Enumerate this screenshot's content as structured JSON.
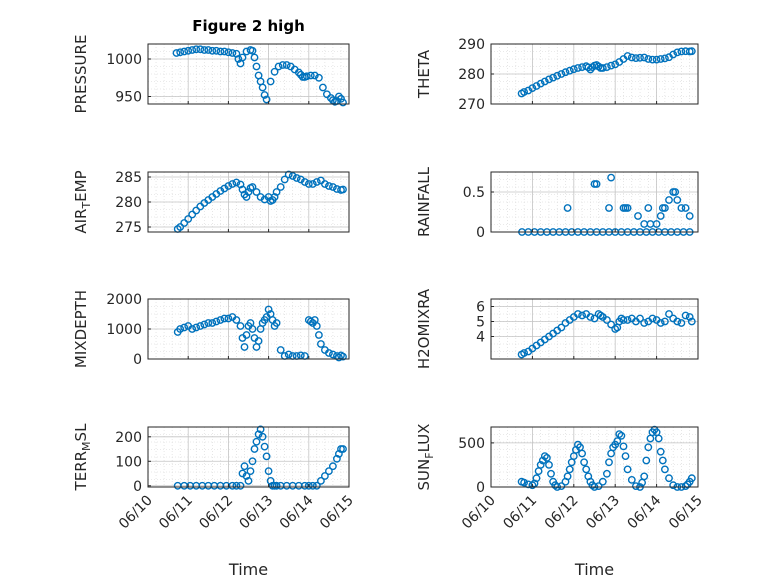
{
  "title": "Figure 2 high",
  "x_ticks": [
    "06/10",
    "06/11",
    "06/12",
    "06/13",
    "06/14",
    "06/15"
  ],
  "x_label": "Time",
  "marker_color": "#0072BD",
  "chart_data": [
    {
      "type": "scatter",
      "ylabel": "PRESSURE",
      "title": "Figure 2 high",
      "xlim": [
        0,
        5
      ],
      "ylim": [
        940,
        1020
      ],
      "yticks": [
        950,
        1000
      ],
      "x": [
        0.71,
        0.8,
        0.9,
        1.0,
        1.1,
        1.2,
        1.3,
        1.4,
        1.5,
        1.6,
        1.7,
        1.8,
        1.9,
        2.0,
        2.1,
        2.2,
        2.25,
        2.3,
        2.35,
        2.45,
        2.55,
        2.6,
        2.65,
        2.7,
        2.75,
        2.8,
        2.85,
        2.9,
        2.95,
        3.05,
        3.15,
        3.25,
        3.35,
        3.45,
        3.55,
        3.65,
        3.75,
        3.8,
        3.85,
        3.9,
        3.95,
        4.05,
        4.15,
        4.25,
        4.35,
        4.45,
        4.55,
        4.6,
        4.65,
        4.7,
        4.75,
        4.8,
        4.85
      ],
      "y": [
        1008,
        1009,
        1010,
        1011,
        1012,
        1013,
        1013,
        1012,
        1012,
        1011,
        1011,
        1010,
        1010,
        1009,
        1008,
        1007,
        1000,
        994,
        1002,
        1010,
        1012,
        1011,
        1002,
        990,
        978,
        970,
        962,
        952,
        946,
        970,
        983,
        990,
        992,
        992,
        990,
        986,
        982,
        979,
        976,
        976,
        977,
        978,
        978,
        975,
        962,
        953,
        948,
        945,
        943,
        944,
        950,
        947,
        942
      ]
    },
    {
      "type": "scatter",
      "ylabel": "THETA",
      "xlim": [
        0,
        5
      ],
      "ylim": [
        270,
        290
      ],
      "yticks": [
        270,
        280,
        290
      ],
      "x": [
        0.74,
        0.8,
        0.9,
        1.0,
        1.1,
        1.2,
        1.3,
        1.4,
        1.5,
        1.6,
        1.7,
        1.8,
        1.9,
        2.0,
        2.1,
        2.2,
        2.3,
        2.35,
        2.4,
        2.45,
        2.5,
        2.55,
        2.6,
        2.65,
        2.7,
        2.8,
        2.9,
        3.0,
        3.1,
        3.2,
        3.3,
        3.4,
        3.5,
        3.6,
        3.7,
        3.8,
        3.9,
        4.0,
        4.1,
        4.2,
        4.3,
        4.4,
        4.5,
        4.6,
        4.7,
        4.8,
        4.85
      ],
      "y": [
        273.5,
        274,
        274.5,
        275.3,
        276,
        276.8,
        277.5,
        278.2,
        278.8,
        279.4,
        280,
        280.6,
        281.1,
        281.6,
        282,
        282.3,
        282.6,
        282.2,
        281.5,
        282.3,
        282.8,
        283,
        282.5,
        282,
        282,
        282.3,
        282.8,
        283.2,
        284,
        285,
        286,
        285.5,
        285.3,
        285.4,
        285.5,
        285,
        284.8,
        284.8,
        285,
        285.2,
        285.6,
        286.5,
        287.2,
        287.5,
        287.6,
        287.5,
        287.6
      ]
    },
    {
      "type": "scatter",
      "ylabel": "AIR_TEMP",
      "xlim": [
        0,
        5
      ],
      "ylim": [
        274,
        286
      ],
      "yticks": [
        275,
        280,
        285
      ],
      "x": [
        0.74,
        0.8,
        0.9,
        1.0,
        1.1,
        1.2,
        1.3,
        1.4,
        1.5,
        1.6,
        1.7,
        1.8,
        1.9,
        2.0,
        2.1,
        2.2,
        2.3,
        2.35,
        2.4,
        2.45,
        2.5,
        2.55,
        2.6,
        2.7,
        2.8,
        2.9,
        3.0,
        3.05,
        3.1,
        3.15,
        3.2,
        3.3,
        3.4,
        3.5,
        3.6,
        3.7,
        3.8,
        3.9,
        4.0,
        4.1,
        4.2,
        4.3,
        4.4,
        4.5,
        4.6,
        4.7,
        4.8,
        4.85
      ],
      "y": [
        274.6,
        275,
        275.8,
        276.6,
        277.5,
        278.3,
        279.1,
        279.8,
        280.4,
        281,
        281.6,
        282.2,
        282.7,
        283.2,
        283.6,
        283.9,
        283.5,
        282.5,
        281.5,
        281,
        282,
        282.8,
        283,
        282,
        281,
        280.5,
        281,
        280.2,
        280.4,
        281,
        282,
        283,
        284.5,
        285.5,
        285.2,
        284.8,
        284.5,
        284,
        283.6,
        283.6,
        284,
        284.3,
        283.6,
        283.2,
        283,
        282.6,
        282.4,
        282.5
      ]
    },
    {
      "type": "scatter",
      "ylabel": "RAINFALL",
      "xlim": [
        0,
        5
      ],
      "ylim": [
        0,
        0.75
      ],
      "yticks": [
        0,
        0.5
      ],
      "x": [
        0.75,
        0.9,
        1.05,
        1.2,
        1.35,
        1.5,
        1.65,
        1.8,
        1.95,
        2.1,
        2.25,
        2.4,
        2.55,
        2.7,
        2.85,
        3.0,
        3.15,
        3.3,
        3.45,
        3.6,
        3.75,
        3.9,
        4.05,
        4.2,
        4.35,
        4.5,
        4.65,
        4.8,
        1.85,
        2.5,
        2.55,
        2.85,
        2.9,
        3.2,
        3.25,
        3.3,
        3.55,
        3.7,
        3.8,
        4.0,
        4.1,
        4.15,
        4.2,
        4.3,
        4.4,
        4.45,
        4.5,
        4.6,
        4.7,
        4.8,
        3.85
      ],
      "y": [
        0,
        0,
        0,
        0,
        0,
        0,
        0,
        0,
        0,
        0,
        0,
        0,
        0,
        0,
        0,
        0,
        0,
        0,
        0,
        0,
        0,
        0,
        0,
        0,
        0,
        0,
        0,
        0,
        0.3,
        0.6,
        0.6,
        0.3,
        0.68,
        0.3,
        0.3,
        0.3,
        0.2,
        0.1,
        0.3,
        0.1,
        0.2,
        0.3,
        0.3,
        0.4,
        0.5,
        0.5,
        0.4,
        0.3,
        0.3,
        0.2,
        0.1
      ]
    },
    {
      "type": "scatter",
      "ylabel": "MIXDEPTH",
      "xlim": [
        0,
        5
      ],
      "ylim": [
        0,
        2000
      ],
      "yticks": [
        0,
        1000,
        2000
      ],
      "x": [
        0.74,
        0.8,
        0.9,
        1.0,
        1.1,
        1.2,
        1.3,
        1.4,
        1.5,
        1.6,
        1.7,
        1.8,
        1.9,
        2.0,
        2.1,
        2.2,
        2.3,
        2.35,
        2.4,
        2.45,
        2.5,
        2.55,
        2.6,
        2.65,
        2.7,
        2.75,
        2.8,
        2.85,
        2.9,
        2.95,
        3.0,
        3.05,
        3.1,
        3.15,
        3.2,
        3.3,
        3.4,
        3.5,
        3.6,
        3.7,
        3.8,
        3.9,
        4.0,
        4.05,
        4.1,
        4.15,
        4.2,
        4.25,
        4.3,
        4.4,
        4.5,
        4.6,
        4.7,
        4.75,
        4.8,
        4.85
      ],
      "y": [
        900,
        1000,
        1050,
        1100,
        1000,
        1050,
        1100,
        1150,
        1200,
        1200,
        1250,
        1300,
        1350,
        1350,
        1400,
        1300,
        1100,
        700,
        400,
        800,
        1100,
        1200,
        1000,
        700,
        400,
        600,
        1000,
        1200,
        1300,
        1400,
        1650,
        1500,
        1300,
        1100,
        1200,
        300,
        100,
        150,
        100,
        100,
        120,
        100,
        1300,
        1250,
        1200,
        1300,
        1100,
        800,
        500,
        300,
        200,
        150,
        100,
        50,
        120,
        80
      ]
    },
    {
      "type": "scatter",
      "ylabel": "H2OMIXRA",
      "xlim": [
        0,
        5
      ],
      "ylim": [
        2.5,
        6.5
      ],
      "yticks": [
        4,
        5,
        6
      ],
      "x": [
        0.74,
        0.8,
        0.9,
        1.0,
        1.1,
        1.2,
        1.3,
        1.4,
        1.5,
        1.6,
        1.7,
        1.8,
        1.9,
        2.0,
        2.1,
        2.2,
        2.3,
        2.4,
        2.5,
        2.6,
        2.65,
        2.7,
        2.8,
        2.9,
        3.0,
        3.05,
        3.1,
        3.15,
        3.2,
        3.3,
        3.4,
        3.5,
        3.6,
        3.7,
        3.8,
        3.9,
        4.0,
        4.1,
        4.2,
        4.3,
        4.4,
        4.5,
        4.6,
        4.7,
        4.8,
        4.85
      ],
      "y": [
        2.8,
        2.9,
        3.0,
        3.2,
        3.4,
        3.6,
        3.8,
        4.0,
        4.2,
        4.4,
        4.6,
        4.9,
        5.1,
        5.3,
        5.5,
        5.4,
        5.5,
        5.3,
        5.2,
        5.5,
        5.4,
        5.3,
        5.1,
        4.8,
        4.5,
        4.6,
        5.0,
        5.2,
        5.1,
        5.1,
        5.2,
        5.0,
        5.2,
        4.9,
        5.0,
        5.2,
        5.1,
        4.9,
        5.0,
        5.5,
        5.2,
        5.0,
        4.9,
        5.4,
        5.3,
        5.0
      ]
    },
    {
      "type": "scatter",
      "ylabel": "TERR_MSL",
      "xlim": [
        0,
        5
      ],
      "ylim": [
        -5,
        240
      ],
      "yticks": [
        0,
        100,
        200
      ],
      "x": [
        0.74,
        0.9,
        1.05,
        1.2,
        1.35,
        1.5,
        1.65,
        1.8,
        1.95,
        2.1,
        2.2,
        2.3,
        2.35,
        2.4,
        2.45,
        2.5,
        2.55,
        2.6,
        2.65,
        2.7,
        2.75,
        2.8,
        2.85,
        2.9,
        2.95,
        3.0,
        3.05,
        3.1,
        3.15,
        3.2,
        3.3,
        3.45,
        3.6,
        3.75,
        3.9,
        4.0,
        4.1,
        4.2,
        4.3,
        4.4,
        4.5,
        4.6,
        4.7,
        4.75,
        4.8,
        4.85
      ],
      "y": [
        0,
        0,
        0,
        0,
        0,
        0,
        0,
        0,
        0,
        0,
        0,
        0,
        50,
        80,
        40,
        20,
        60,
        100,
        150,
        180,
        210,
        230,
        200,
        160,
        120,
        60,
        20,
        0,
        0,
        0,
        0,
        0,
        0,
        0,
        0,
        0,
        0,
        0,
        20,
        40,
        60,
        80,
        110,
        130,
        150,
        150
      ]
    },
    {
      "type": "scatter",
      "ylabel": "SUN_FLUX",
      "xlim": [
        0,
        5
      ],
      "ylim": [
        0,
        680
      ],
      "yticks": [
        0,
        500
      ],
      "x": [
        0.74,
        0.8,
        0.9,
        1.0,
        1.05,
        1.1,
        1.15,
        1.2,
        1.25,
        1.3,
        1.35,
        1.4,
        1.45,
        1.5,
        1.55,
        1.6,
        1.7,
        1.8,
        1.85,
        1.9,
        1.95,
        2.0,
        2.05,
        2.1,
        2.15,
        2.2,
        2.25,
        2.3,
        2.35,
        2.4,
        2.45,
        2.5,
        2.6,
        2.7,
        2.8,
        2.85,
        2.9,
        2.95,
        3.0,
        3.05,
        3.1,
        3.15,
        3.2,
        3.25,
        3.3,
        3.4,
        3.5,
        3.6,
        3.65,
        3.7,
        3.75,
        3.8,
        3.85,
        3.9,
        3.95,
        4.0,
        4.05,
        4.1,
        4.15,
        4.2,
        4.3,
        4.4,
        4.5,
        4.6,
        4.7,
        4.75,
        4.8,
        4.85
      ],
      "y": [
        60,
        50,
        30,
        20,
        40,
        100,
        180,
        250,
        300,
        350,
        330,
        250,
        150,
        60,
        20,
        0,
        10,
        60,
        120,
        200,
        280,
        350,
        420,
        480,
        450,
        380,
        280,
        200,
        120,
        60,
        20,
        0,
        10,
        60,
        150,
        280,
        380,
        450,
        480,
        520,
        600,
        580,
        460,
        350,
        200,
        80,
        10,
        0,
        50,
        120,
        300,
        450,
        550,
        620,
        650,
        620,
        550,
        400,
        300,
        200,
        100,
        20,
        0,
        0,
        10,
        30,
        60,
        100
      ]
    }
  ]
}
